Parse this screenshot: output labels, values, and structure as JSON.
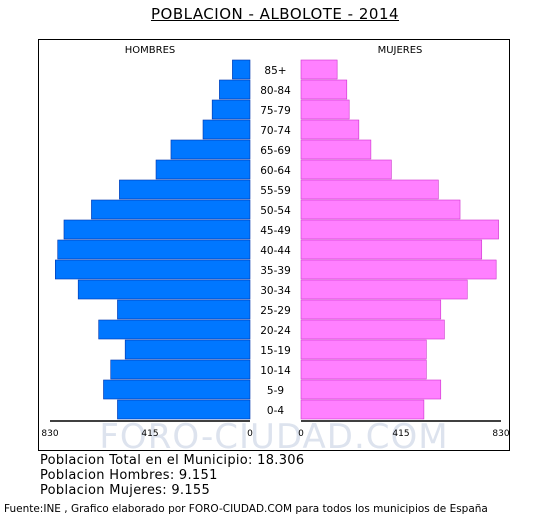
{
  "title": "POBLACION - ALBOLOTE - 2014",
  "watermark": "FORO-CIUDAD.COM",
  "totals": {
    "total": "Poblacion Total en el Municipio: 18.306",
    "men": "Poblacion Hombres: 9.151",
    "women": "Poblacion Mujeres: 9.155"
  },
  "source": "Fuente:INE , Grafico elaborado por FORO-CIUDAD.COM para todos los municipios de España",
  "chart_data": {
    "type": "bar",
    "orientation": "horizontal-pyramid",
    "left_label": "HOMBRES",
    "right_label": "MUJERES",
    "categories": [
      "85+",
      "80-84",
      "75-79",
      "70-74",
      "65-69",
      "60-64",
      "55-59",
      "50-54",
      "45-49",
      "40-44",
      "35-39",
      "30-34",
      "25-29",
      "20-24",
      "15-19",
      "10-14",
      "5-9",
      "0-4"
    ],
    "series": [
      {
        "name": "HOMBRES",
        "color": "#0077ff",
        "values": [
          73,
          127,
          157,
          195,
          328,
          390,
          542,
          658,
          772,
          798,
          808,
          713,
          550,
          628,
          518,
          578,
          608,
          550
        ]
      },
      {
        "name": "MUJERES",
        "color": "#ff80ff",
        "values": [
          150,
          190,
          200,
          240,
          290,
          375,
          570,
          660,
          820,
          750,
          810,
          690,
          580,
          595,
          520,
          520,
          580,
          510
        ]
      }
    ],
    "xlim": [
      0,
      830
    ],
    "x_ticks_left": [
      "830",
      "415",
      "0"
    ],
    "x_ticks_right": [
      "0",
      "415",
      "830"
    ],
    "grid": false
  }
}
